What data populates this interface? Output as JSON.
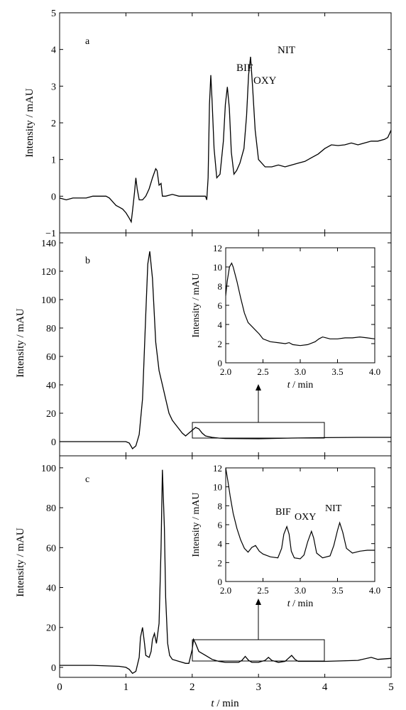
{
  "chart_data": [
    {
      "panel": "a",
      "type": "line",
      "ylabel": "Intensity / mAU",
      "xlim": [
        0,
        5
      ],
      "ylim": [
        -1,
        5
      ],
      "xticks": [
        0,
        1,
        2,
        3,
        4,
        5
      ],
      "yticks": [
        -1,
        0,
        1,
        2,
        3,
        4,
        5
      ],
      "peak_labels": [
        {
          "text": "BIF",
          "x": 2.27,
          "y": 3.35
        },
        {
          "text": "OXY",
          "x": 2.56,
          "y": 3.0
        },
        {
          "text": "NIT",
          "x": 2.88,
          "y": 3.8
        }
      ],
      "series": [
        {
          "x": [
            0,
            0.1,
            0.2,
            0.3,
            0.4,
            0.5,
            0.6,
            0.7,
            0.75,
            0.8,
            0.85,
            0.9,
            0.95,
            1.0,
            1.05,
            1.08,
            1.1,
            1.13,
            1.15,
            1.17,
            1.2,
            1.25,
            1.3,
            1.35,
            1.4,
            1.45,
            1.47,
            1.5,
            1.53,
            1.55,
            1.57,
            1.6,
            1.7,
            1.8,
            1.9,
            2.0,
            2.1,
            2.2,
            2.22,
            2.24,
            2.26,
            2.28,
            2.3,
            2.33,
            2.37,
            2.42,
            2.47,
            2.5,
            2.53,
            2.56,
            2.59,
            2.63,
            2.67,
            2.72,
            2.78,
            2.82,
            2.85,
            2.88,
            2.91,
            2.95,
            3.0,
            3.1,
            3.2,
            3.3,
            3.4,
            3.5,
            3.6,
            3.7,
            3.8,
            3.9,
            4.0,
            4.1,
            4.2,
            4.3,
            4.4,
            4.5,
            4.6,
            4.7,
            4.8,
            4.9,
            4.95,
            5.0
          ],
          "y": [
            -0.05,
            -0.1,
            -0.05,
            -0.05,
            -0.05,
            0.0,
            0.0,
            0.0,
            -0.05,
            -0.15,
            -0.25,
            -0.3,
            -0.35,
            -0.45,
            -0.6,
            -0.7,
            -0.4,
            0.1,
            0.5,
            0.2,
            -0.1,
            -0.1,
            0.0,
            0.2,
            0.5,
            0.75,
            0.7,
            0.3,
            0.35,
            0.0,
            0.0,
            0.0,
            0.05,
            0.0,
            0.0,
            0.0,
            0.0,
            0.0,
            -0.1,
            0.5,
            2.5,
            3.3,
            2.6,
            1.3,
            0.5,
            0.6,
            1.5,
            2.5,
            2.98,
            2.4,
            1.2,
            0.6,
            0.7,
            0.9,
            1.3,
            2.2,
            3.3,
            3.8,
            3.0,
            1.8,
            1.0,
            0.8,
            0.8,
            0.85,
            0.8,
            0.85,
            0.9,
            0.95,
            1.05,
            1.15,
            1.3,
            1.4,
            1.38,
            1.4,
            1.45,
            1.4,
            1.45,
            1.5,
            1.5,
            1.55,
            1.6,
            1.8
          ]
        }
      ]
    },
    {
      "panel": "b",
      "type": "line",
      "ylabel": "Intensity / mAU",
      "xlim": [
        0,
        5
      ],
      "ylim": [
        -10,
        147
      ],
      "xticks": [
        0,
        1,
        2,
        3,
        4,
        5
      ],
      "yticks": [
        0,
        20,
        40,
        60,
        80,
        100,
        120,
        140
      ],
      "series": [
        {
          "x": [
            0,
            0.5,
            0.9,
            1.0,
            1.05,
            1.1,
            1.15,
            1.2,
            1.25,
            1.3,
            1.33,
            1.36,
            1.4,
            1.45,
            1.5,
            1.55,
            1.6,
            1.65,
            1.7,
            1.75,
            1.8,
            1.85,
            1.9,
            1.95,
            2.0,
            2.05,
            2.1,
            2.15,
            2.2,
            2.3,
            2.4,
            2.5,
            3.0,
            3.5,
            4.0,
            4.5,
            5.0
          ],
          "y": [
            0,
            0,
            0,
            0,
            -1,
            -5,
            -3,
            5,
            30,
            90,
            125,
            134,
            115,
            70,
            50,
            40,
            30,
            20,
            15,
            12,
            9,
            6,
            4,
            6,
            8,
            10,
            9,
            6,
            4,
            3,
            2.5,
            2.2,
            2,
            2.5,
            2.8,
            3,
            3
          ]
        }
      ]
    },
    {
      "panel": "b-inset",
      "type": "line",
      "xlabel": "t / min",
      "ylabel": "Intensity / mAU",
      "xlim": [
        2.0,
        4.0
      ],
      "ylim": [
        0,
        12
      ],
      "xticks": [
        2.0,
        2.5,
        3.0,
        3.5,
        4.0
      ],
      "yticks": [
        0,
        2,
        4,
        6,
        8,
        10,
        12
      ],
      "series": [
        {
          "x": [
            2.0,
            2.02,
            2.05,
            2.08,
            2.1,
            2.15,
            2.2,
            2.25,
            2.3,
            2.35,
            2.4,
            2.45,
            2.5,
            2.6,
            2.7,
            2.8,
            2.85,
            2.9,
            3.0,
            3.1,
            3.2,
            3.25,
            3.3,
            3.35,
            3.4,
            3.5,
            3.6,
            3.7,
            3.8,
            3.9,
            4.0
          ],
          "y": [
            7.0,
            8.5,
            10.0,
            10.4,
            10.0,
            8.5,
            6.8,
            5.2,
            4.2,
            3.8,
            3.4,
            3.0,
            2.5,
            2.2,
            2.1,
            2.0,
            2.1,
            1.9,
            1.8,
            1.9,
            2.2,
            2.5,
            2.7,
            2.6,
            2.5,
            2.5,
            2.6,
            2.6,
            2.7,
            2.6,
            2.5
          ]
        }
      ]
    },
    {
      "panel": "c",
      "type": "line",
      "xlabel": "t / min",
      "ylabel": "Intensity / mAU",
      "xlim": [
        0,
        5
      ],
      "ylim": [
        -5,
        106
      ],
      "xticks": [
        0,
        1,
        2,
        3,
        4,
        5
      ],
      "yticks": [
        0,
        20,
        40,
        60,
        80,
        100
      ],
      "series": [
        {
          "x": [
            0,
            0.5,
            0.9,
            1.0,
            1.05,
            1.1,
            1.15,
            1.2,
            1.22,
            1.25,
            1.28,
            1.3,
            1.35,
            1.38,
            1.4,
            1.43,
            1.46,
            1.5,
            1.53,
            1.55,
            1.58,
            1.6,
            1.63,
            1.66,
            1.7,
            1.8,
            1.9,
            1.95,
            2.0,
            2.02,
            2.05,
            2.1,
            2.2,
            2.3,
            2.4,
            2.5,
            2.6,
            2.7,
            2.75,
            2.8,
            2.85,
            2.9,
            3.0,
            3.1,
            3.15,
            3.2,
            3.3,
            3.4,
            3.45,
            3.5,
            3.55,
            3.6,
            4.0,
            4.5,
            4.7,
            4.8,
            5.0
          ],
          "y": [
            1,
            1,
            0.5,
            0,
            -1,
            -3,
            -2,
            5,
            15,
            20,
            12,
            6,
            5,
            8,
            14,
            17,
            12,
            22,
            60,
            99,
            70,
            35,
            12,
            6,
            4,
            3,
            2,
            2,
            9,
            14,
            12,
            8,
            6,
            4,
            3,
            2.5,
            2.5,
            2.5,
            3.5,
            5.5,
            3.5,
            2.5,
            2.5,
            3.5,
            5,
            3.5,
            2.5,
            3,
            4.5,
            6,
            4,
            3,
            3,
            3.5,
            5,
            4,
            4.5
          ]
        }
      ]
    },
    {
      "panel": "c-inset",
      "type": "line",
      "xlabel": "t / min",
      "ylabel": "Intensity / mAU",
      "xlim": [
        2.0,
        4.0
      ],
      "ylim": [
        0,
        12
      ],
      "xticks": [
        2.0,
        2.5,
        3.0,
        3.5,
        4.0
      ],
      "yticks": [
        0,
        2,
        4,
        6,
        8,
        10,
        12
      ],
      "peak_labels": [
        {
          "text": "BIF",
          "x": 2.82,
          "y": 5.8
        },
        {
          "text": "OXY",
          "x": 3.15,
          "y": 5.3
        },
        {
          "text": "NIT",
          "x": 3.51,
          "y": 6.2
        }
      ],
      "series": [
        {
          "x": [
            2.0,
            2.03,
            2.06,
            2.1,
            2.15,
            2.2,
            2.25,
            2.3,
            2.35,
            2.4,
            2.45,
            2.5,
            2.6,
            2.7,
            2.75,
            2.78,
            2.82,
            2.85,
            2.88,
            2.92,
            3.0,
            3.05,
            3.1,
            3.15,
            3.18,
            3.22,
            3.3,
            3.4,
            3.45,
            3.5,
            3.53,
            3.57,
            3.62,
            3.7,
            3.8,
            3.9,
            4.0
          ],
          "y": [
            12.0,
            10.6,
            9.0,
            7.2,
            5.6,
            4.4,
            3.5,
            3.1,
            3.6,
            3.8,
            3.2,
            2.9,
            2.6,
            2.5,
            3.5,
            5.0,
            5.8,
            5.0,
            3.2,
            2.5,
            2.4,
            2.8,
            4.2,
            5.3,
            4.6,
            3.0,
            2.5,
            2.7,
            3.8,
            5.4,
            6.2,
            5.2,
            3.5,
            3.0,
            3.2,
            3.3,
            3.3
          ]
        }
      ]
    }
  ],
  "panel_letters": {
    "a": "a",
    "b": "b",
    "c": "c"
  },
  "ylabel": "Intensity / mAU",
  "xlabel_italic": "t",
  "xlabel_rest": " / min",
  "tick_x_main": [
    "0",
    "1",
    "2",
    "3",
    "4",
    "5"
  ],
  "tick_y_a": [
    "−1",
    "0",
    "1",
    "2",
    "3",
    "4",
    "5"
  ],
  "tick_y_b": [
    "0",
    "20",
    "40",
    "60",
    "80",
    "100",
    "120",
    "140"
  ],
  "tick_y_c": [
    "0",
    "20",
    "40",
    "60",
    "80",
    "100"
  ],
  "tick_x_inset": [
    "2.0",
    "2.5",
    "3.0",
    "3.5",
    "4.0"
  ],
  "tick_y_inset": [
    "0",
    "2",
    "4",
    "6",
    "8",
    "10",
    "12"
  ],
  "peaks_a": [
    "BIF",
    "OXY",
    "NIT"
  ],
  "peaks_c_inset": [
    "BIF",
    "OXY",
    "NIT"
  ]
}
